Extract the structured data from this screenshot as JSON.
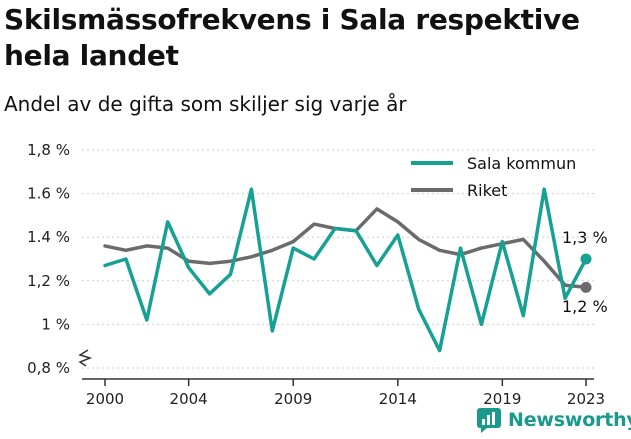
{
  "title": "Skilsmässofrekvens i Sala respektive hela landet",
  "subtitle": "Andel av de gifta som skiljer sig varje år",
  "brand": {
    "name": "Newsworthy",
    "icon": "newsworthy-logo-icon"
  },
  "colors": {
    "sala": "#16a192",
    "riket": "#6b6b6e",
    "axis": "#333333",
    "grid": "#cfcfcf",
    "brand": "#1a9a8c"
  },
  "chart_data": {
    "type": "line",
    "x": [
      2000,
      2001,
      2002,
      2003,
      2004,
      2005,
      2006,
      2007,
      2008,
      2009,
      2010,
      2011,
      2012,
      2013,
      2014,
      2015,
      2016,
      2017,
      2018,
      2019,
      2020,
      2021,
      2022,
      2023
    ],
    "series": [
      {
        "name": "Sala kommun",
        "values": [
          1.27,
          1.3,
          1.02,
          1.47,
          1.26,
          1.14,
          1.23,
          1.62,
          0.97,
          1.35,
          1.3,
          1.44,
          1.43,
          1.27,
          1.41,
          1.07,
          0.88,
          1.35,
          1.0,
          1.38,
          1.04,
          1.62,
          1.12,
          1.3
        ]
      },
      {
        "name": "Riket",
        "values": [
          1.36,
          1.34,
          1.36,
          1.35,
          1.29,
          1.28,
          1.29,
          1.31,
          1.34,
          1.38,
          1.46,
          1.44,
          1.43,
          1.53,
          1.47,
          1.39,
          1.34,
          1.32,
          1.35,
          1.37,
          1.39,
          1.29,
          1.18,
          1.17
        ]
      }
    ],
    "end_labels": [
      "1,3 %",
      "1,2 %"
    ],
    "yticks": [
      "0,8 %",
      "1 %",
      "1,2 %",
      "1.4 %",
      "1.6 %",
      "1,8 %"
    ],
    "ytick_values": [
      0.8,
      1.0,
      1.2,
      1.4,
      1.6,
      1.8
    ],
    "xticks": [
      "2000",
      "2004",
      "2009",
      "2014",
      "2019",
      "2023"
    ],
    "xtick_values": [
      2000,
      2004,
      2009,
      2014,
      2019,
      2023
    ],
    "ylim": [
      0.8,
      1.8
    ],
    "xlim": [
      2000,
      2023
    ],
    "grid": "horizontal",
    "legend": "top-right",
    "axis_break": true,
    "title": "Skilsmässofrekvens i Sala respektive hela landet",
    "subtitle": "Andel av de gifta som skiljer sig varje år",
    "xlabel": "",
    "ylabel": ""
  }
}
